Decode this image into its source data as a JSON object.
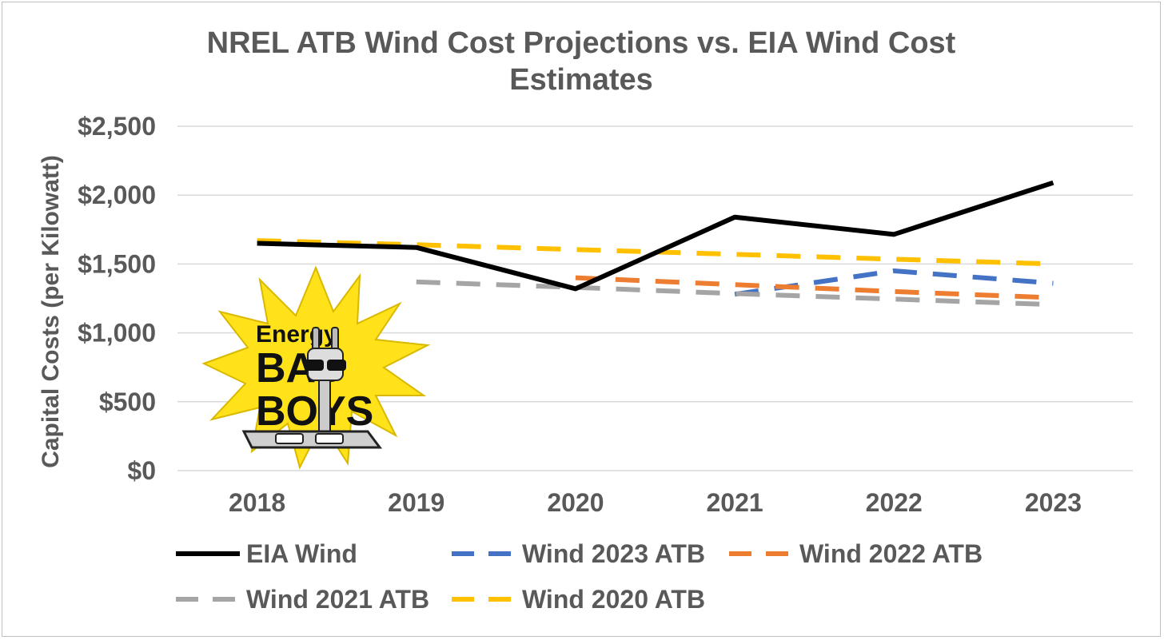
{
  "chart_data": {
    "type": "line",
    "title_line1": "NREL ATB Wind Cost Projections vs. EIA Wind Cost",
    "title_line2": "Estimates",
    "xlabel": "",
    "ylabel": "Capital Costs (per Kilowatt)",
    "categories": [
      "2018",
      "2019",
      "2020",
      "2021",
      "2022",
      "2023"
    ],
    "ylim": [
      0,
      2500
    ],
    "yticks": [
      0,
      500,
      1000,
      1500,
      2000,
      2500
    ],
    "ytick_labels": [
      "$0",
      "$500",
      "$1,000",
      "$1,500",
      "$2,000",
      "$2,500"
    ],
    "grid": true,
    "legend_position": "bottom",
    "series": [
      {
        "name": "EIA Wind",
        "color": "#000000",
        "dash": "solid",
        "values": [
          1650,
          1620,
          1320,
          1840,
          1715,
          2090
        ]
      },
      {
        "name": "Wind 2023 ATB",
        "color": "#4472C4",
        "dash": "dashed",
        "values": [
          null,
          null,
          null,
          1280,
          1450,
          1360
        ]
      },
      {
        "name": "Wind 2022 ATB",
        "color": "#ED7D31",
        "dash": "dashed",
        "values": [
          null,
          null,
          1400,
          1350,
          1300,
          1255
        ]
      },
      {
        "name": "Wind 2021 ATB",
        "color": "#A5A5A5",
        "dash": "dashed",
        "values": [
          null,
          1370,
          1330,
          1285,
          1245,
          1205
        ]
      },
      {
        "name": "Wind 2020 ATB",
        "color": "#FFC000",
        "dash": "dashed",
        "values": [
          1670,
          1640,
          1605,
          1570,
          1535,
          1500
        ]
      }
    ]
  },
  "logo": {
    "icon": "starburst-plug-with-sunglasses-icon",
    "word1": "Energy",
    "word2": "BAD",
    "word3": "BOYS",
    "burst_color": "#FFE21A"
  }
}
